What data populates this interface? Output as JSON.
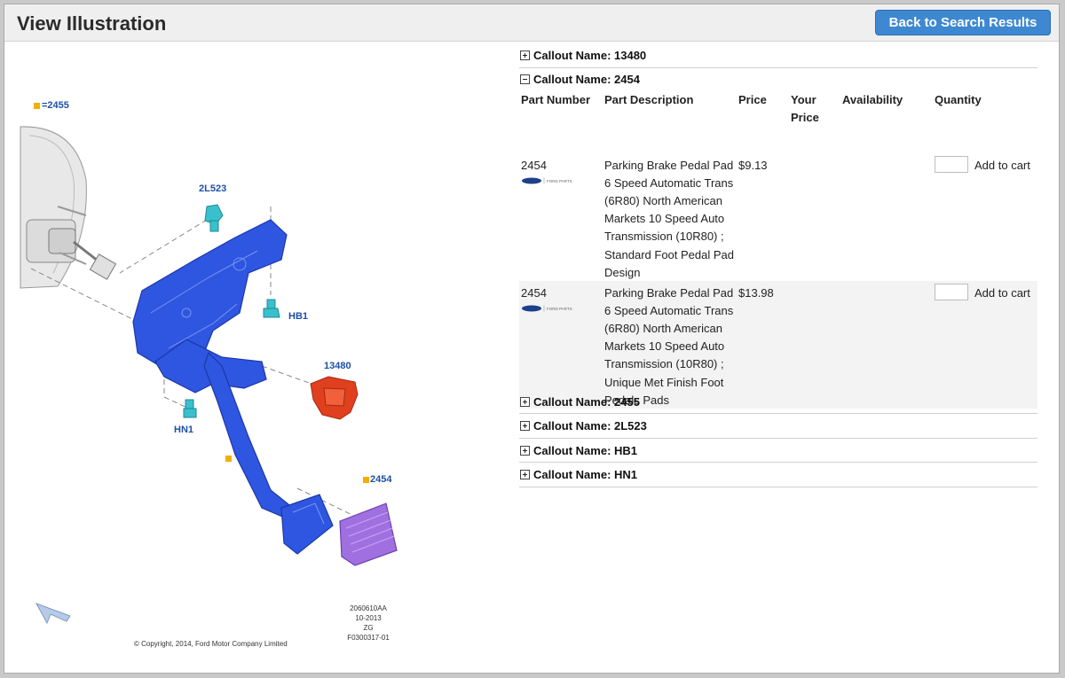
{
  "header": {
    "title": "View Illustration",
    "back_label": "Back to Search Results"
  },
  "illustration": {
    "labels": {
      "c2455": "=2455",
      "c2l523": "2L523",
      "hb1": "HB1",
      "c13480": "13480",
      "hn1": "HN1",
      "c2454": "2454"
    },
    "code_lines": [
      "2060610AA",
      "10-2013",
      "ZG",
      "F0300317-01"
    ],
    "copyright": "© Copyright, 2014, Ford Motor Company Limited",
    "brand_text": "FORD PARTS"
  },
  "callouts_before": [
    {
      "label": "Callout Name: 13480"
    }
  ],
  "expanded": {
    "label": "Callout Name: 2454",
    "columns": {
      "part_number": "Part Number",
      "part_description": "Part Description",
      "price": "Price",
      "your_price_1": "Your",
      "your_price_2": "Price",
      "availability": "Availability",
      "quantity": "Quantity"
    },
    "rows": [
      {
        "part_number": "2454",
        "desc_lines": [
          "Parking Brake Pedal Pad",
          "6 Speed Automatic Trans",
          "(6R80) North American",
          "Markets 10 Speed Auto",
          "Transmission (10R80) ;",
          "Standard Foot Pedal Pad",
          "Design"
        ],
        "price": "$9.13",
        "quantity": "",
        "add_label": "Add to cart"
      },
      {
        "part_number": "2454",
        "desc_lines": [
          "Parking Brake Pedal Pad",
          "6 Speed Automatic Trans",
          "(6R80) North American",
          "Markets 10 Speed Auto",
          "Transmission (10R80) ;",
          "Unique Met Finish Foot",
          "Pedals Pads"
        ],
        "price": "$13.98",
        "quantity": "",
        "add_label": "Add to cart"
      }
    ]
  },
  "callouts_after": [
    {
      "label": "Callout Name: 2455"
    },
    {
      "label": "Callout Name: 2L523"
    },
    {
      "label": "Callout Name: HB1"
    },
    {
      "label": "Callout Name: HN1"
    }
  ],
  "colors": {
    "button": "#3d88d1",
    "pedal_blue": "#2f56e0",
    "bolt_cyan": "#39c0cc",
    "switch_red": "#e0401e",
    "pad_purple": "#a070e0",
    "marker_yellow": "#f0b000",
    "callout_blue": "#1c4fa8"
  }
}
